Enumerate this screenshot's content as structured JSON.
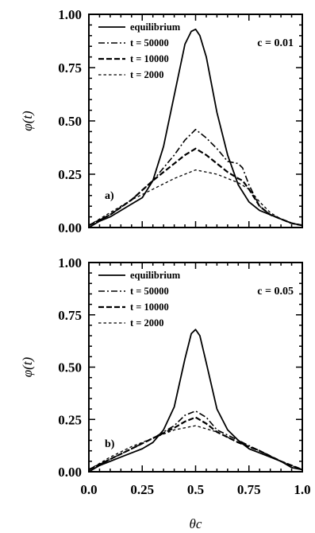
{
  "chart_data": [
    {
      "type": "line",
      "panel_label": "a)",
      "annotation": "c = 0.01",
      "xlabel": "",
      "ylabel": "φ(t)",
      "xlim": [
        0,
        1
      ],
      "ylim": [
        0,
        1
      ],
      "xticks": [],
      "yticks": [
        "0.00",
        "0.25",
        "0.50",
        "0.75",
        "1.00"
      ],
      "legend_position": "top-left",
      "grid": false,
      "series": [
        {
          "name": "equilibrium",
          "style": "solid",
          "x": [
            0,
            0.05,
            0.1,
            0.15,
            0.2,
            0.25,
            0.3,
            0.35,
            0.4,
            0.45,
            0.48,
            0.5,
            0.52,
            0.55,
            0.6,
            0.65,
            0.7,
            0.75,
            0.8,
            0.85,
            0.9,
            0.95,
            1.0
          ],
          "y": [
            0.0,
            0.03,
            0.05,
            0.08,
            0.11,
            0.14,
            0.22,
            0.38,
            0.62,
            0.86,
            0.92,
            0.93,
            0.9,
            0.8,
            0.54,
            0.34,
            0.2,
            0.12,
            0.08,
            0.06,
            0.04,
            0.02,
            0.01
          ]
        },
        {
          "name": "t = 50000",
          "style": "dashdot",
          "x": [
            0,
            0.1,
            0.2,
            0.3,
            0.4,
            0.45,
            0.5,
            0.55,
            0.6,
            0.65,
            0.7,
            0.72,
            0.75,
            0.8,
            0.85,
            0.9,
            0.95,
            1.0
          ],
          "y": [
            0.01,
            0.06,
            0.13,
            0.22,
            0.34,
            0.41,
            0.46,
            0.42,
            0.37,
            0.31,
            0.3,
            0.28,
            0.2,
            0.1,
            0.06,
            0.04,
            0.02,
            0.01
          ]
        },
        {
          "name": "t = 10000",
          "style": "dashed",
          "x": [
            0,
            0.1,
            0.2,
            0.3,
            0.4,
            0.45,
            0.5,
            0.55,
            0.6,
            0.65,
            0.7,
            0.72,
            0.75,
            0.8,
            0.85,
            0.9,
            0.95,
            1.0
          ],
          "y": [
            0.01,
            0.06,
            0.13,
            0.22,
            0.3,
            0.34,
            0.37,
            0.34,
            0.3,
            0.26,
            0.23,
            0.22,
            0.18,
            0.1,
            0.06,
            0.04,
            0.02,
            0.01
          ]
        },
        {
          "name": "t = 2000",
          "style": "short-dashed",
          "x": [
            0,
            0.1,
            0.2,
            0.3,
            0.4,
            0.5,
            0.6,
            0.7,
            0.75,
            0.8,
            0.85,
            0.9,
            0.95,
            1.0
          ],
          "y": [
            0.01,
            0.07,
            0.13,
            0.18,
            0.23,
            0.27,
            0.25,
            0.21,
            0.18,
            0.12,
            0.07,
            0.04,
            0.02,
            0.01
          ]
        }
      ]
    },
    {
      "type": "line",
      "panel_label": "b)",
      "annotation": "c = 0.05",
      "xlabel": "θc",
      "ylabel": "φ(t)",
      "xlim": [
        0,
        1
      ],
      "ylim": [
        0,
        1
      ],
      "xticks": [
        "0.0",
        "0.25",
        "0.5",
        "0.75",
        "1.0"
      ],
      "yticks": [
        "0.00",
        "0.25",
        "0.50",
        "0.75",
        "1.00"
      ],
      "legend_position": "top-left",
      "grid": false,
      "series": [
        {
          "name": "equilibrium",
          "style": "solid",
          "x": [
            0,
            0.05,
            0.1,
            0.15,
            0.2,
            0.25,
            0.3,
            0.35,
            0.4,
            0.45,
            0.48,
            0.5,
            0.52,
            0.55,
            0.6,
            0.65,
            0.7,
            0.75,
            0.8,
            0.85,
            0.9,
            0.95,
            1.0
          ],
          "y": [
            0.0,
            0.03,
            0.05,
            0.07,
            0.09,
            0.11,
            0.14,
            0.2,
            0.31,
            0.54,
            0.66,
            0.68,
            0.65,
            0.52,
            0.3,
            0.2,
            0.15,
            0.11,
            0.09,
            0.07,
            0.05,
            0.02,
            0.01
          ]
        },
        {
          "name": "t = 50000",
          "style": "dashdot",
          "x": [
            0,
            0.1,
            0.2,
            0.3,
            0.4,
            0.45,
            0.5,
            0.55,
            0.6,
            0.7,
            0.8,
            0.9,
            1.0
          ],
          "y": [
            0.01,
            0.06,
            0.11,
            0.16,
            0.22,
            0.27,
            0.29,
            0.26,
            0.2,
            0.15,
            0.1,
            0.05,
            0.01
          ]
        },
        {
          "name": "t = 10000",
          "style": "dashed",
          "x": [
            0,
            0.1,
            0.2,
            0.3,
            0.4,
            0.45,
            0.5,
            0.55,
            0.6,
            0.7,
            0.8,
            0.9,
            1.0
          ],
          "y": [
            0.01,
            0.06,
            0.11,
            0.16,
            0.21,
            0.24,
            0.26,
            0.23,
            0.19,
            0.14,
            0.1,
            0.05,
            0.01
          ]
        },
        {
          "name": "t = 2000",
          "style": "short-dashed",
          "x": [
            0,
            0.1,
            0.2,
            0.3,
            0.4,
            0.5,
            0.6,
            0.7,
            0.8,
            0.9,
            1.0
          ],
          "y": [
            0.01,
            0.07,
            0.12,
            0.16,
            0.2,
            0.22,
            0.19,
            0.14,
            0.1,
            0.05,
            0.01
          ]
        }
      ]
    }
  ]
}
